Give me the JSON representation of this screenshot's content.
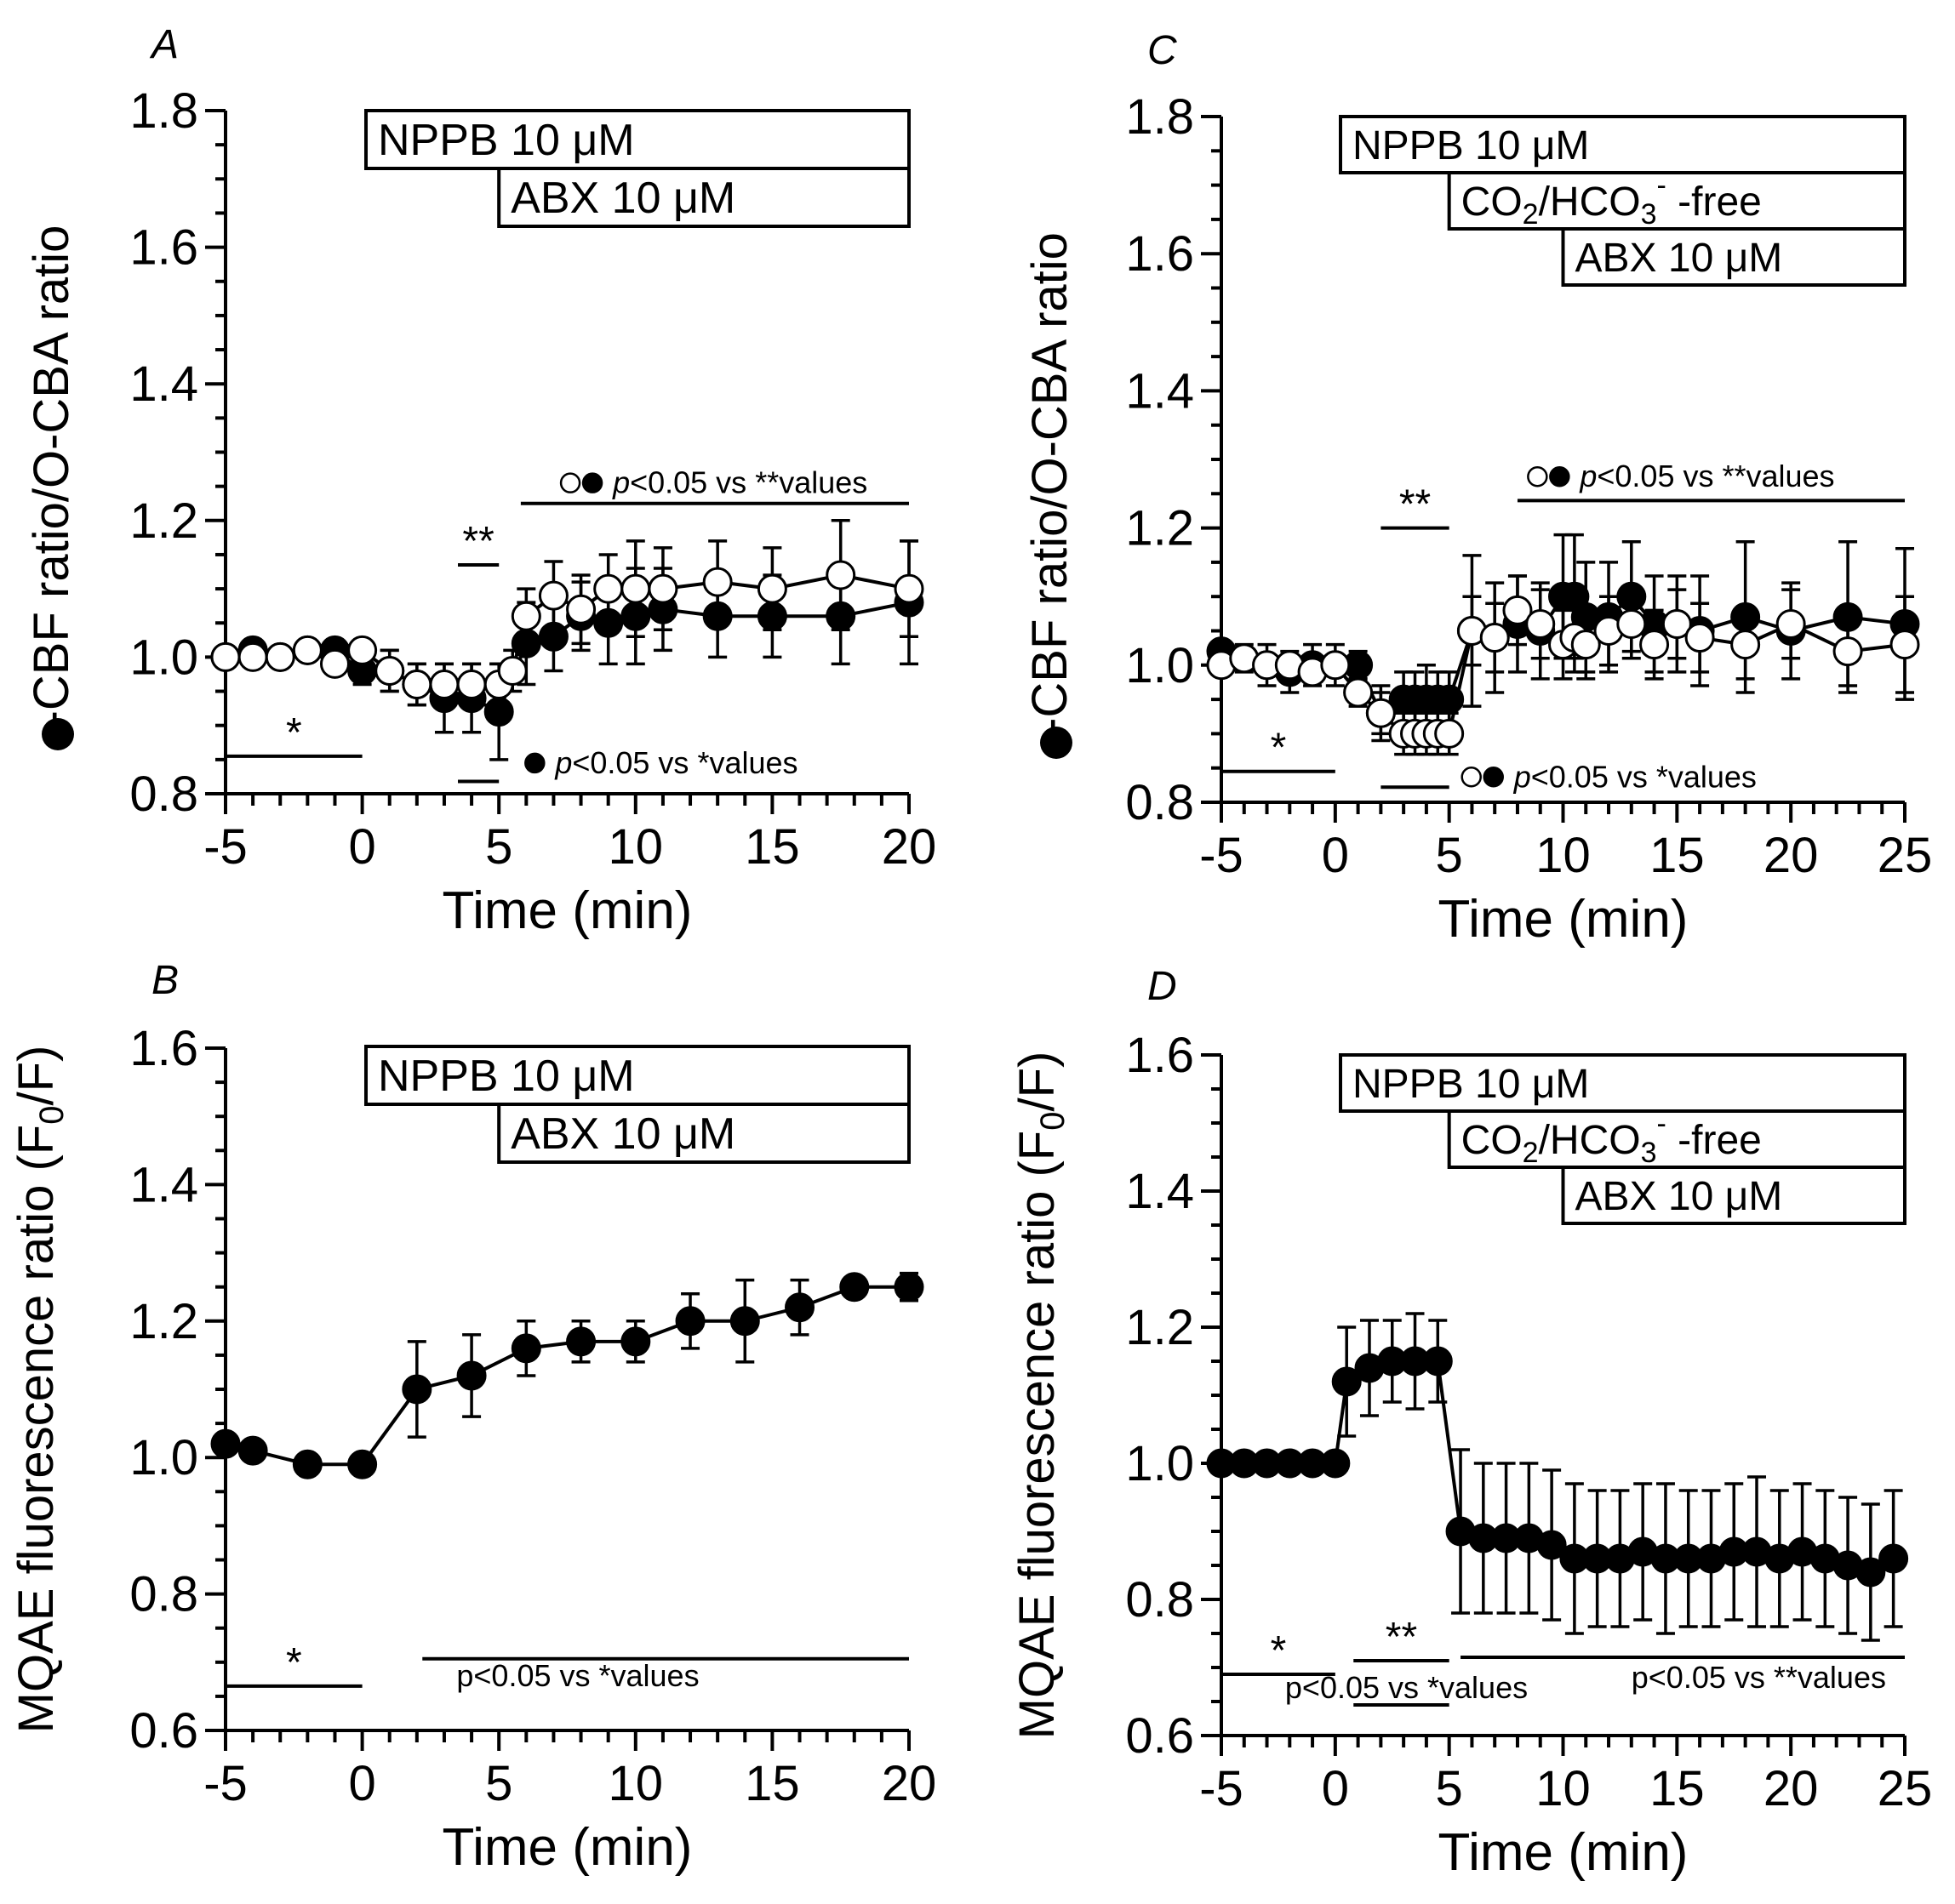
{
  "chart_data": [
    {
      "type": "line",
      "panel": "A",
      "xlabel": "Time (min)",
      "ylabel": "-CBF ratio/O-CBA ratio",
      "xlim": [
        -5,
        20
      ],
      "ylim": [
        0.8,
        1.8
      ],
      "xticks": [
        -5,
        0,
        5,
        10,
        15,
        20
      ],
      "yticks": [
        0.8,
        1.0,
        1.2,
        1.4,
        1.6,
        1.8
      ],
      "drug_bars": [
        {
          "label": "NPPB 10 μM",
          "start": 0
        },
        {
          "label": "ABX 10 μM",
          "start": 5
        }
      ],
      "series": [
        {
          "name": "CBF ratio (filled)",
          "marker": "filled",
          "x": [
            -5,
            -4,
            -3,
            -2,
            -1,
            0,
            1,
            2,
            3,
            4,
            5,
            6,
            7,
            8,
            9,
            10,
            11,
            13,
            15,
            17.5,
            20
          ],
          "y": [
            1.0,
            1.01,
            1.0,
            1.01,
            1.01,
            0.98,
            0.98,
            0.96,
            0.94,
            0.94,
            0.92,
            1.02,
            1.03,
            1.06,
            1.05,
            1.06,
            1.07,
            1.06,
            1.06,
            1.06,
            1.08
          ],
          "err": [
            0.01,
            0.01,
            0.01,
            0.01,
            0.01,
            0.02,
            0.03,
            0.03,
            0.05,
            0.05,
            0.07,
            0.06,
            0.05,
            0.05,
            0.06,
            0.07,
            0.06,
            0.06,
            0.06,
            0.07,
            0.09
          ]
        },
        {
          "name": "CBA ratio (open)",
          "marker": "open",
          "x": [
            -5,
            -4,
            -3,
            -2,
            -1,
            0,
            1,
            2,
            3,
            4,
            5,
            5.5,
            6,
            7,
            8,
            9,
            10,
            11,
            13,
            15,
            17.5,
            20
          ],
          "y": [
            1.0,
            1.0,
            1.0,
            1.01,
            0.99,
            1.01,
            0.98,
            0.96,
            0.96,
            0.96,
            0.96,
            0.98,
            1.06,
            1.09,
            1.07,
            1.1,
            1.1,
            1.1,
            1.11,
            1.1,
            1.12,
            1.1
          ],
          "err": [
            0.01,
            0.01,
            0.01,
            0.01,
            0.01,
            0.01,
            0.03,
            0.03,
            0.03,
            0.03,
            0.03,
            0.03,
            0.04,
            0.05,
            0.05,
            0.05,
            0.07,
            0.06,
            0.06,
            0.06,
            0.08,
            0.07
          ]
        }
      ],
      "sig_lines": [
        {
          "x1": -5,
          "x2": 0,
          "y": 0.855,
          "label": "*",
          "label_side": "above"
        },
        {
          "x1": 3.5,
          "x2": 5,
          "y": 1.135,
          "label": "**",
          "label_side": "above"
        },
        {
          "x1": 3.5,
          "x2": 5,
          "y": 0.818,
          "label": "",
          "label_side": "none"
        },
        {
          "x1": 5.8,
          "x2": 20,
          "y": 1.225,
          "label": "",
          "label_side": "none"
        }
      ],
      "annotations": [
        {
          "x": 6.0,
          "y": 0.83,
          "pre_symbols": [
            "filled"
          ],
          "italic": "p",
          "text": "<0.05 vs *values"
        },
        {
          "x": 7.3,
          "y": 1.24,
          "pre_symbols": [
            "open",
            "filled"
          ],
          "italic": "p",
          "text": "<0.05 vs **values"
        }
      ]
    },
    {
      "type": "line",
      "panel": "B",
      "xlabel": "Time (min)",
      "ylabel": "MQAE fluorescence ratio (F",
      "ylabel_sub": "0",
      "ylabel_post": "/F)",
      "xlim": [
        -5,
        20
      ],
      "ylim": [
        0.6,
        1.6
      ],
      "xticks": [
        -5,
        0,
        5,
        10,
        15,
        20
      ],
      "yticks": [
        0.6,
        0.8,
        1.0,
        1.2,
        1.4,
        1.6
      ],
      "drug_bars": [
        {
          "label": "NPPB 10 μM",
          "start": 0
        },
        {
          "label": "ABX 10 μM",
          "start": 5
        }
      ],
      "series": [
        {
          "name": "MQAE",
          "marker": "filled",
          "x": [
            -5,
            -4,
            -2,
            0,
            2,
            4,
            6,
            8,
            10,
            12,
            14,
            16,
            18,
            20
          ],
          "y": [
            1.02,
            1.01,
            0.99,
            0.99,
            1.1,
            1.12,
            1.16,
            1.17,
            1.17,
            1.2,
            1.2,
            1.22,
            1.25,
            1.25
          ],
          "err": [
            0.01,
            0.01,
            0.01,
            0.01,
            0.07,
            0.06,
            0.04,
            0.03,
            0.03,
            0.04,
            0.06,
            0.04,
            0.01,
            0.02
          ]
        }
      ],
      "sig_lines": [
        {
          "x1": -5,
          "x2": 0,
          "y": 0.665,
          "label": "*",
          "label_side": "above"
        },
        {
          "x1": 2.2,
          "x2": 20,
          "y": 0.705,
          "label": "",
          "label_side": "none"
        }
      ],
      "annotations": [
        {
          "x": 3.2,
          "y": 0.665,
          "pre_symbols": [],
          "italic": "",
          "text": "p<0.05 vs *values"
        }
      ]
    },
    {
      "type": "line",
      "panel": "C",
      "xlabel": "Time (min)",
      "ylabel": "-CBF ratio/O-CBA ratio",
      "xlim": [
        -5,
        25
      ],
      "ylim": [
        0.8,
        1.8
      ],
      "xticks": [
        -5,
        0,
        5,
        10,
        15,
        20,
        25
      ],
      "yticks": [
        0.8,
        1.0,
        1.2,
        1.4,
        1.6,
        1.8
      ],
      "drug_bars": [
        {
          "label": "NPPB 10 μM",
          "start": 0
        },
        {
          "label": "CO2/HCO3- -free",
          "start": 5,
          "rich": "co2"
        },
        {
          "label": "ABX 10 μM",
          "start": 10
        }
      ],
      "series": [
        {
          "name": "CBF ratio (filled)",
          "marker": "filled",
          "x": [
            -5,
            -4,
            -3,
            -2,
            -1,
            0,
            1,
            2,
            3,
            3.5,
            4,
            4.5,
            5,
            6,
            7,
            8,
            9,
            10,
            10.5,
            11,
            12,
            13,
            14,
            15,
            16,
            18,
            20,
            22.5,
            25
          ],
          "y": [
            1.02,
            1.01,
            1.0,
            0.99,
            1.0,
            1.0,
            1.0,
            0.93,
            0.95,
            0.95,
            0.95,
            0.95,
            0.95,
            1.05,
            1.04,
            1.06,
            1.05,
            1.1,
            1.1,
            1.07,
            1.07,
            1.1,
            1.06,
            1.06,
            1.05,
            1.07,
            1.05,
            1.07,
            1.06
          ],
          "err": [
            0.01,
            0.02,
            0.03,
            0.03,
            0.03,
            0.03,
            0.02,
            0.04,
            0.04,
            0.04,
            0.05,
            0.04,
            0.04,
            0.11,
            0.08,
            0.07,
            0.07,
            0.09,
            0.09,
            0.08,
            0.08,
            0.08,
            0.07,
            0.07,
            0.08,
            0.11,
            0.07,
            0.11,
            0.11
          ]
        },
        {
          "name": "CBA ratio (open)",
          "marker": "open",
          "x": [
            -5,
            -4,
            -3,
            -2,
            -1,
            0,
            1,
            2,
            3,
            3.5,
            4,
            4.5,
            5,
            6,
            7,
            8,
            9,
            10,
            10.5,
            11,
            12,
            13,
            14,
            15,
            16,
            18,
            20,
            22.5,
            25
          ],
          "y": [
            1.0,
            1.01,
            1.0,
            1.0,
            0.99,
            1.0,
            0.96,
            0.93,
            0.9,
            0.9,
            0.9,
            0.9,
            0.9,
            1.05,
            1.04,
            1.08,
            1.06,
            1.03,
            1.04,
            1.03,
            1.05,
            1.06,
            1.03,
            1.06,
            1.04,
            1.03,
            1.06,
            1.02,
            1.03
          ],
          "err": [
            0.01,
            0.01,
            0.01,
            0.01,
            0.01,
            0.01,
            0.02,
            0.03,
            0.03,
            0.03,
            0.03,
            0.03,
            0.03,
            0.05,
            0.05,
            0.05,
            0.05,
            0.05,
            0.05,
            0.05,
            0.05,
            0.05,
            0.05,
            0.05,
            0.05,
            0.05,
            0.05,
            0.05,
            0.07
          ]
        }
      ],
      "sig_lines": [
        {
          "x1": -5,
          "x2": 0,
          "y": 0.845,
          "label": "*",
          "label_side": "above"
        },
        {
          "x1": 2,
          "x2": 5,
          "y": 1.2,
          "label": "**",
          "label_side": "above"
        },
        {
          "x1": 2,
          "x2": 5,
          "y": 0.822,
          "label": "",
          "label_side": "none"
        },
        {
          "x1": 8,
          "x2": 25,
          "y": 1.24,
          "label": "",
          "label_side": "none"
        }
      ],
      "annotations": [
        {
          "x": 5.6,
          "y": 0.822,
          "pre_symbols": [
            "open",
            "filled"
          ],
          "italic": "p",
          "text": "<0.05 vs *values"
        },
        {
          "x": 8.5,
          "y": 1.26,
          "pre_symbols": [
            "open",
            "filled"
          ],
          "italic": "p",
          "text": "<0.05 vs **values"
        }
      ]
    },
    {
      "type": "line",
      "panel": "D",
      "xlabel": "Time (min)",
      "ylabel": "MQAE fluorescence ratio (F",
      "ylabel_sub": "0",
      "ylabel_post": "/F)",
      "xlim": [
        -5,
        25
      ],
      "ylim": [
        0.6,
        1.6
      ],
      "xticks": [
        -5,
        0,
        5,
        10,
        15,
        20,
        25
      ],
      "yticks": [
        0.6,
        0.8,
        1.0,
        1.2,
        1.4,
        1.6
      ],
      "drug_bars": [
        {
          "label": "NPPB 10 μM",
          "start": 0
        },
        {
          "label": "CO2/HCO3- -free",
          "start": 5,
          "rich": "co2"
        },
        {
          "label": "ABX 10 μM",
          "start": 10
        }
      ],
      "series": [
        {
          "name": "MQAE",
          "marker": "filled",
          "x": [
            -5,
            -4,
            -3,
            -2,
            -1,
            0,
            0.5,
            1.5,
            2.5,
            3.5,
            4.5,
            5.5,
            6.5,
            7.5,
            8.5,
            9.5,
            10.5,
            11.5,
            12.5,
            13.5,
            14.5,
            15.5,
            16.5,
            17.5,
            18.5,
            19.5,
            20.5,
            21.5,
            22.5,
            23.5,
            24.5
          ],
          "y": [
            1.0,
            1.0,
            1.0,
            1.0,
            1.0,
            1.0,
            1.12,
            1.14,
            1.15,
            1.15,
            1.15,
            0.9,
            0.89,
            0.89,
            0.89,
            0.88,
            0.86,
            0.86,
            0.86,
            0.87,
            0.86,
            0.86,
            0.86,
            0.87,
            0.87,
            0.86,
            0.87,
            0.86,
            0.85,
            0.84,
            0.86
          ],
          "err": [
            0.01,
            0.01,
            0.01,
            0.01,
            0.01,
            0.01,
            0.08,
            0.07,
            0.06,
            0.07,
            0.06,
            0.12,
            0.11,
            0.11,
            0.11,
            0.11,
            0.11,
            0.1,
            0.1,
            0.1,
            0.11,
            0.1,
            0.1,
            0.1,
            0.11,
            0.1,
            0.1,
            0.1,
            0.1,
            0.1,
            0.1
          ]
        }
      ],
      "sig_lines": [
        {
          "x1": -5,
          "x2": 0,
          "y": 0.69,
          "label": "*",
          "label_side": "above"
        },
        {
          "x1": 0.8,
          "x2": 5,
          "y": 0.71,
          "label": "**",
          "label_side": "above"
        },
        {
          "x1": 0.8,
          "x2": 5,
          "y": 0.645,
          "label": "",
          "label_side": "none"
        },
        {
          "x1": 5.5,
          "x2": 25,
          "y": 0.715,
          "label": "",
          "label_side": "none"
        }
      ],
      "annotations": [
        {
          "x": -2.5,
          "y": 0.655,
          "pre_symbols": [],
          "italic": "",
          "text": "p<0.05 vs *values"
        },
        {
          "x": 12.7,
          "y": 0.67,
          "pre_symbols": [],
          "italic": "",
          "text": "p<0.05 vs **values"
        }
      ]
    }
  ]
}
